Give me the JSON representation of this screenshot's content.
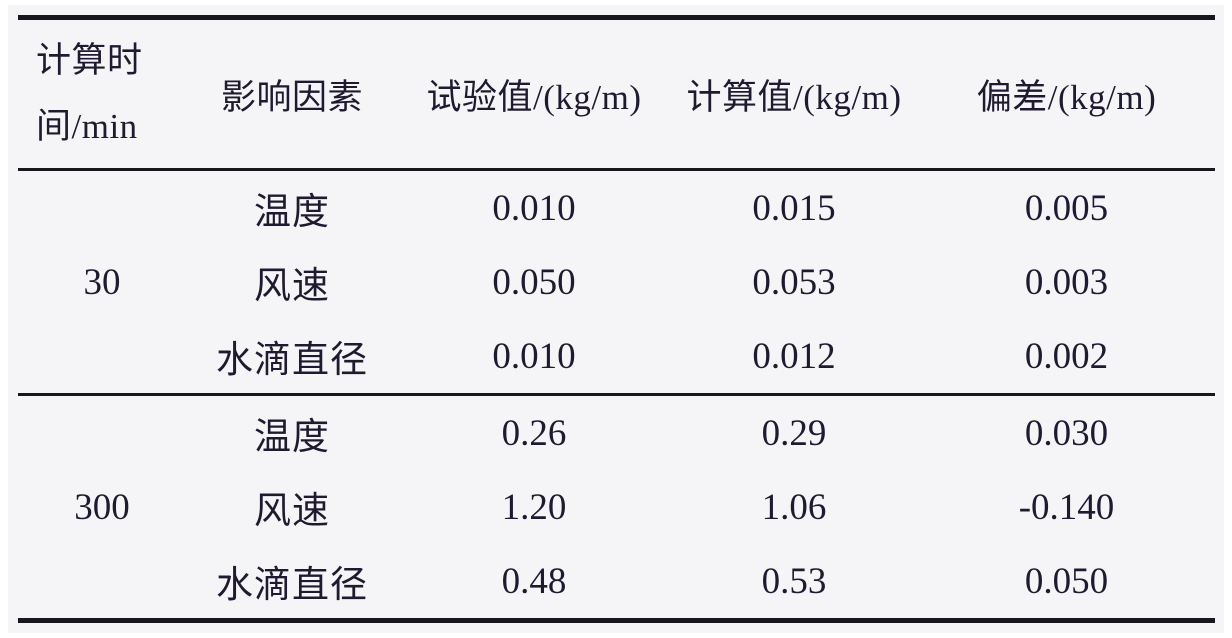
{
  "colors": {
    "paper_background": "#f5f5f7",
    "rule_color": "#17171d",
    "text_color": "#201a30"
  },
  "table": {
    "columns": {
      "time": "计算时间/min",
      "factor": "影响因素",
      "test": "试验值/(kg/m)",
      "calc": "计算值/(kg/m)",
      "deviation": "偏差/(kg/m)"
    },
    "groups": [
      {
        "time": "30",
        "rows": [
          {
            "factor": "温度",
            "test": "0.010",
            "calc": "0.015",
            "deviation": "0.005"
          },
          {
            "factor": "风速",
            "test": "0.050",
            "calc": "0.053",
            "deviation": "0.003"
          },
          {
            "factor": "水滴直径",
            "test": "0.010",
            "calc": "0.012",
            "deviation": "0.002"
          }
        ]
      },
      {
        "time": "300",
        "rows": [
          {
            "factor": "温度",
            "test": "0.26",
            "calc": "0.29",
            "deviation": "0.030"
          },
          {
            "factor": "风速",
            "test": "1.20",
            "calc": "1.06",
            "deviation": "-0.140"
          },
          {
            "factor": "水滴直径",
            "test": "0.48",
            "calc": "0.53",
            "deviation": "0.050"
          }
        ]
      }
    ]
  },
  "chart_data": {
    "type": "table",
    "title": "",
    "columns": [
      "计算时间/min",
      "影响因素",
      "试验值/(kg/m)",
      "计算值/(kg/m)",
      "偏差/(kg/m)"
    ],
    "rows": [
      [
        "30",
        "温度",
        0.01,
        0.015,
        0.005
      ],
      [
        "30",
        "风速",
        0.05,
        0.053,
        0.003
      ],
      [
        "30",
        "水滴直径",
        0.01,
        0.012,
        0.002
      ],
      [
        "300",
        "温度",
        0.26,
        0.29,
        0.03
      ],
      [
        "300",
        "风速",
        1.2,
        1.06,
        -0.14
      ],
      [
        "300",
        "水滴直径",
        0.48,
        0.53,
        0.05
      ]
    ]
  }
}
